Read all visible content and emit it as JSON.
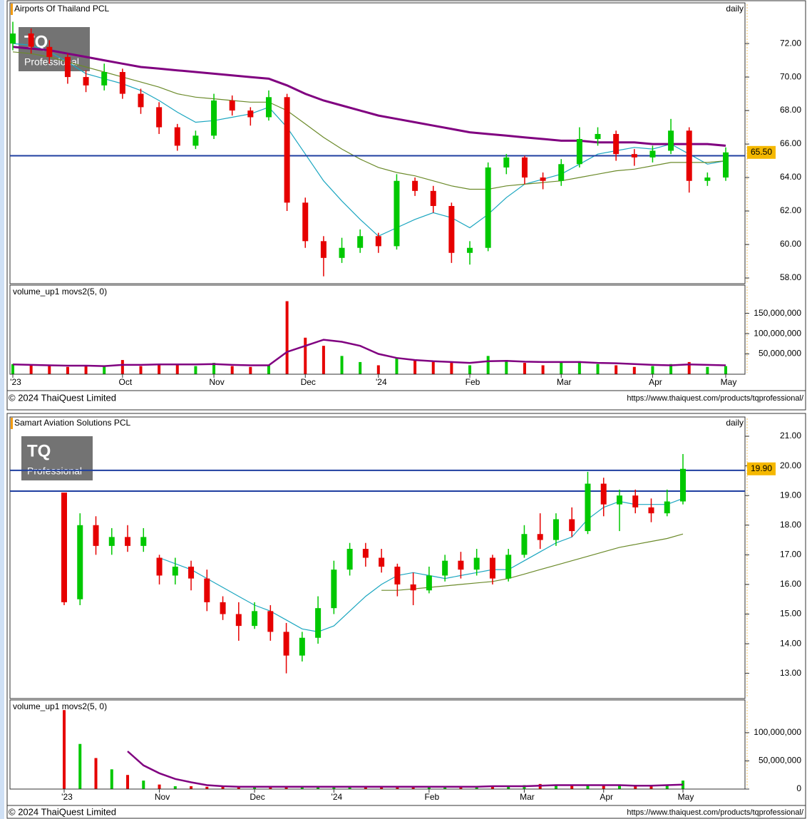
{
  "chart_data": [
    {
      "type": "candlestick",
      "title": "Airports Of Thailand PCL",
      "period": "daily",
      "logo": {
        "mark": "TQ",
        "caption": "Professional"
      },
      "up_color": "#00c800",
      "down_color": "#e60000",
      "open": [
        72.0,
        72.6,
        71.8,
        71.2,
        70.0,
        69.5,
        70.3,
        69.0,
        68.2,
        67.0,
        65.9,
        66.5,
        68.6,
        68.0,
        67.6,
        68.8,
        62.5,
        60.2,
        59.2,
        59.8,
        60.5,
        59.9,
        63.8,
        63.2,
        62.3,
        59.5,
        59.8,
        64.6,
        65.2,
        64.0,
        63.8,
        64.8,
        66.3,
        66.6,
        65.4,
        65.2,
        65.6,
        66.8,
        63.8,
        64.0
      ],
      "high": [
        73.3,
        72.9,
        72.2,
        71.4,
        70.4,
        70.8,
        70.5,
        69.3,
        68.5,
        67.2,
        66.8,
        69.0,
        68.9,
        68.2,
        69.2,
        69.0,
        62.8,
        60.5,
        60.4,
        60.9,
        60.7,
        64.2,
        64.0,
        63.5,
        62.5,
        60.2,
        64.9,
        65.4,
        65.3,
        64.3,
        65.1,
        67.0,
        67.0,
        66.8,
        65.7,
        65.9,
        67.5,
        67.0,
        64.3,
        65.8
      ],
      "low": [
        71.6,
        71.4,
        70.8,
        69.6,
        69.1,
        69.2,
        68.7,
        67.8,
        66.6,
        65.6,
        65.7,
        66.3,
        67.7,
        67.1,
        67.4,
        62.0,
        59.8,
        58.1,
        58.9,
        59.5,
        59.5,
        59.7,
        62.9,
        61.9,
        58.9,
        58.8,
        59.6,
        64.2,
        63.6,
        63.3,
        63.5,
        64.6,
        65.9,
        65.0,
        64.7,
        64.9,
        65.4,
        63.1,
        63.5,
        63.8
      ],
      "close": [
        72.6,
        71.8,
        71.2,
        70.0,
        69.5,
        70.3,
        69.0,
        68.2,
        67.0,
        65.9,
        66.5,
        68.6,
        68.0,
        67.6,
        68.8,
        62.5,
        60.2,
        59.2,
        59.8,
        60.5,
        59.9,
        63.8,
        63.2,
        62.3,
        59.5,
        59.8,
        64.6,
        65.2,
        64.0,
        63.8,
        64.8,
        66.3,
        66.6,
        65.4,
        65.2,
        65.6,
        66.8,
        63.8,
        64.0,
        65.5
      ],
      "series": [
        {
          "color": "#1ba6c0",
          "values": [
            72.0,
            71.9,
            71.5,
            70.9,
            70.2,
            69.9,
            69.6,
            69.2,
            68.6,
            67.9,
            67.3,
            67.4,
            67.6,
            67.8,
            68.2,
            67.0,
            65.4,
            63.8,
            62.6,
            61.5,
            60.5,
            61.0,
            61.5,
            61.9,
            61.6,
            61.0,
            61.8,
            62.8,
            63.6,
            63.9,
            64.2,
            64.8,
            65.4,
            65.6,
            65.8,
            65.7,
            66.0,
            65.4,
            64.8,
            65.0
          ]
        },
        {
          "color": "#6b8a2a",
          "values": [
            71.5,
            71.4,
            71.2,
            70.9,
            70.6,
            70.3,
            70.0,
            69.7,
            69.4,
            69.0,
            68.8,
            68.7,
            68.6,
            68.5,
            68.5,
            68.0,
            67.2,
            66.4,
            65.7,
            65.1,
            64.6,
            64.3,
            64.1,
            63.8,
            63.5,
            63.3,
            63.3,
            63.5,
            63.6,
            63.7,
            63.8,
            64.0,
            64.2,
            64.4,
            64.5,
            64.7,
            64.9,
            64.9,
            64.9,
            65.0
          ]
        },
        {
          "color": "#800080",
          "values": [
            71.8,
            71.7,
            71.6,
            71.4,
            71.2,
            71.0,
            70.8,
            70.6,
            70.5,
            70.4,
            70.3,
            70.2,
            70.1,
            70.0,
            69.9,
            69.5,
            69.0,
            68.6,
            68.3,
            68.0,
            67.7,
            67.5,
            67.3,
            67.1,
            66.9,
            66.7,
            66.6,
            66.5,
            66.4,
            66.3,
            66.2,
            66.2,
            66.1,
            66.1,
            66.1,
            66.0,
            66.0,
            66.0,
            66.0,
            65.9
          ]
        }
      ],
      "hlines": [
        65.3
      ],
      "hline_color": "#1f3fa0",
      "last_label": {
        "value": 65.5,
        "label": "65.50"
      },
      "ylim": [
        57.66,
        74.43
      ],
      "yticks": [
        {
          "value": 58,
          "label": "58.00"
        },
        {
          "value": 60,
          "label": "60.00"
        },
        {
          "value": 62,
          "label": "62.00"
        },
        {
          "value": 64,
          "label": "64.00"
        },
        {
          "value": 66,
          "label": "66.00"
        },
        {
          "value": 68,
          "label": "68.00"
        },
        {
          "value": 70,
          "label": "70.00"
        },
        {
          "value": 72,
          "label": "72.00"
        }
      ]
    },
    {
      "type": "bar",
      "title": "volume_up1 movs2(5, 0)",
      "values": [
        25000000,
        22000000,
        20000000,
        18000000,
        22000000,
        20000000,
        35000000,
        20000000,
        22000000,
        25000000,
        20000000,
        28000000,
        20000000,
        18000000,
        22000000,
        180000000,
        90000000,
        70000000,
        45000000,
        30000000,
        22000000,
        40000000,
        35000000,
        30000000,
        28000000,
        22000000,
        45000000,
        35000000,
        28000000,
        22000000,
        30000000,
        32000000,
        25000000,
        22000000,
        18000000,
        20000000,
        25000000,
        30000000,
        18000000,
        20000000
      ],
      "series": [
        {
          "color": "#800080",
          "values": [
            24000000,
            23000000,
            22000000,
            21000000,
            21000000,
            20000000,
            23000000,
            23000000,
            24000000,
            24000000,
            24000000,
            25000000,
            23000000,
            22000000,
            22000000,
            55000000,
            70000000,
            85000000,
            80000000,
            70000000,
            50000000,
            40000000,
            35000000,
            32000000,
            30000000,
            28000000,
            32000000,
            33000000,
            31000000,
            30000000,
            30000000,
            30000000,
            28000000,
            27000000,
            25000000,
            23000000,
            22000000,
            24000000,
            23000000,
            22000000
          ]
        }
      ],
      "ylim": [
        0,
        219600000
      ],
      "yticks": [
        {
          "value": 50000000,
          "label": "50,000,000"
        },
        {
          "value": 100000000,
          "label": "100,000,000"
        },
        {
          "value": 150000000,
          "label": "150,000,000"
        }
      ],
      "xticks": [
        {
          "value": 0,
          "label": "'23"
        },
        {
          "value": 6,
          "label": "Oct"
        },
        {
          "value": 11,
          "label": "Nov"
        },
        {
          "value": 16,
          "label": "Dec"
        },
        {
          "value": 20,
          "label": "'24"
        },
        {
          "value": 25,
          "label": "Feb"
        },
        {
          "value": 30,
          "label": "Mar"
        },
        {
          "value": 35,
          "label": "Apr"
        },
        {
          "value": 39,
          "label": "May"
        }
      ],
      "copyright": "© 2024 ThaiQuest Limited",
      "url": "https://www.thaiquest.com/products/tqprofessional/"
    },
    {
      "type": "candlestick",
      "title": "Samart Aviation Solutions PCL",
      "period": "daily",
      "logo": {
        "mark": "TQ",
        "caption": "Professional"
      },
      "up_color": "#00c800",
      "down_color": "#e60000",
      "open": [
        19.1,
        15.5,
        18.0,
        17.3,
        17.6,
        17.3,
        16.9,
        16.3,
        16.6,
        16.2,
        15.4,
        15.0,
        14.6,
        15.1,
        14.4,
        13.6,
        14.2,
        15.2,
        16.5,
        17.2,
        16.9,
        16.6,
        16.0,
        15.8,
        16.3,
        16.8,
        16.5,
        16.9,
        16.2,
        17.0,
        17.7,
        17.5,
        18.2,
        17.8,
        19.4,
        18.7,
        19.0,
        18.6,
        18.4,
        18.8
      ],
      "high": [
        19.1,
        18.4,
        18.3,
        17.9,
        18.0,
        17.9,
        17.0,
        16.9,
        16.8,
        16.5,
        15.6,
        15.4,
        15.4,
        15.3,
        14.7,
        14.4,
        15.6,
        16.8,
        17.4,
        17.4,
        17.2,
        16.7,
        16.4,
        16.6,
        17.0,
        17.1,
        17.2,
        17.0,
        17.2,
        18.0,
        18.4,
        18.4,
        18.6,
        19.8,
        19.6,
        19.2,
        19.2,
        18.9,
        19.2,
        20.4
      ],
      "low": [
        15.3,
        15.3,
        17.0,
        17.0,
        17.1,
        17.1,
        16.0,
        16.0,
        15.8,
        15.1,
        14.8,
        14.1,
        14.5,
        14.1,
        13.0,
        13.4,
        14.0,
        15.0,
        16.3,
        16.6,
        16.4,
        15.6,
        15.3,
        15.7,
        16.1,
        16.2,
        16.3,
        16.0,
        16.1,
        16.9,
        17.2,
        17.3,
        17.6,
        17.7,
        18.3,
        17.8,
        18.4,
        18.1,
        18.3,
        18.7
      ],
      "close": [
        15.4,
        18.0,
        17.3,
        17.6,
        17.3,
        17.6,
        16.3,
        16.6,
        16.2,
        15.4,
        15.0,
        14.6,
        15.1,
        14.4,
        13.6,
        14.2,
        15.2,
        16.5,
        17.2,
        16.9,
        16.6,
        16.0,
        15.8,
        16.3,
        16.8,
        16.5,
        16.9,
        16.2,
        17.0,
        17.7,
        17.5,
        18.2,
        17.8,
        19.4,
        18.7,
        19.0,
        18.6,
        18.4,
        18.8,
        19.9
      ],
      "series": [
        {
          "color": "#1ba6c0",
          "values": [
            null,
            null,
            null,
            null,
            null,
            null,
            16.9,
            16.7,
            16.5,
            16.2,
            15.9,
            15.6,
            15.3,
            15.1,
            14.8,
            14.5,
            14.4,
            14.6,
            15.1,
            15.6,
            16.0,
            16.3,
            16.4,
            16.3,
            16.2,
            16.3,
            16.4,
            16.5,
            16.5,
            16.8,
            17.1,
            17.4,
            17.6,
            18.2,
            18.6,
            18.8,
            18.7,
            18.7,
            18.7,
            18.9
          ]
        },
        {
          "color": "#6b8a2a",
          "values": [
            null,
            null,
            null,
            null,
            null,
            null,
            null,
            null,
            null,
            null,
            null,
            null,
            null,
            null,
            null,
            null,
            null,
            null,
            null,
            null,
            15.8,
            15.8,
            15.85,
            15.9,
            15.95,
            16.0,
            16.05,
            16.1,
            16.2,
            16.35,
            16.5,
            16.65,
            16.8,
            16.95,
            17.1,
            17.25,
            17.35,
            17.45,
            17.55,
            17.7
          ]
        }
      ],
      "hlines": [
        19.85,
        19.15
      ],
      "hline_color": "#1f3fa0",
      "last_label": {
        "value": 19.9,
        "label": "19.90"
      },
      "ylim": [
        12.15,
        21.65
      ],
      "yticks": [
        {
          "value": 13,
          "label": "13.00"
        },
        {
          "value": 14,
          "label": "14.00"
        },
        {
          "value": 15,
          "label": "15.00"
        },
        {
          "value": 16,
          "label": "16.00"
        },
        {
          "value": 17,
          "label": "17.00"
        },
        {
          "value": 18,
          "label": "18.00"
        },
        {
          "value": 19,
          "label": "19.00"
        },
        {
          "value": 20,
          "label": "20.00"
        },
        {
          "value": 21,
          "label": "21.00"
        }
      ]
    },
    {
      "type": "bar",
      "title": "volume_up1 movs2(5, 0)",
      "values": [
        140000000,
        80000000,
        55000000,
        35000000,
        25000000,
        15000000,
        8000000,
        5000000,
        5000000,
        4000000,
        4000000,
        3000000,
        4000000,
        3000000,
        5000000,
        4000000,
        4000000,
        5000000,
        5000000,
        4000000,
        4000000,
        3000000,
        4000000,
        4000000,
        4000000,
        5000000,
        5000000,
        4000000,
        6000000,
        7000000,
        9000000,
        8000000,
        6000000,
        8000000,
        7000000,
        6000000,
        5000000,
        5000000,
        6000000,
        15000000
      ],
      "series": [
        {
          "color": "#800080",
          "values": [
            null,
            null,
            null,
            null,
            67000000,
            42000000,
            28000000,
            18000000,
            12000000,
            7000000,
            5000000,
            4000000,
            4000000,
            4000000,
            4000000,
            4000000,
            4000000,
            4000000,
            4000000,
            4000000,
            4000000,
            4000000,
            4000000,
            4000000,
            4000000,
            4000000,
            4000000,
            5000000,
            5000000,
            5000000,
            6000000,
            7000000,
            7000000,
            7000000,
            7000000,
            7000000,
            6000000,
            6000000,
            7000000,
            8000000
          ]
        }
      ],
      "ylim": [
        0,
        158000000
      ],
      "yticks": [
        0,
        {
          "value": 50000000,
          "label": "50,000,000"
        },
        {
          "value": 100000000,
          "label": "100,000,000"
        }
      ],
      "xticks": [
        {
          "value": 0,
          "label": "'23"
        },
        {
          "value": 6,
          "label": "Nov"
        },
        {
          "value": 12,
          "label": "Dec"
        },
        {
          "value": 17,
          "label": "'24"
        },
        {
          "value": 23,
          "label": "Feb"
        },
        {
          "value": 29,
          "label": "Mar"
        },
        {
          "value": 34,
          "label": "Apr"
        },
        {
          "value": 39,
          "label": "May"
        }
      ],
      "copyright": "© 2024 ThaiQuest Limited",
      "url": "https://www.thaiquest.com/products/tqprofessional/"
    }
  ]
}
